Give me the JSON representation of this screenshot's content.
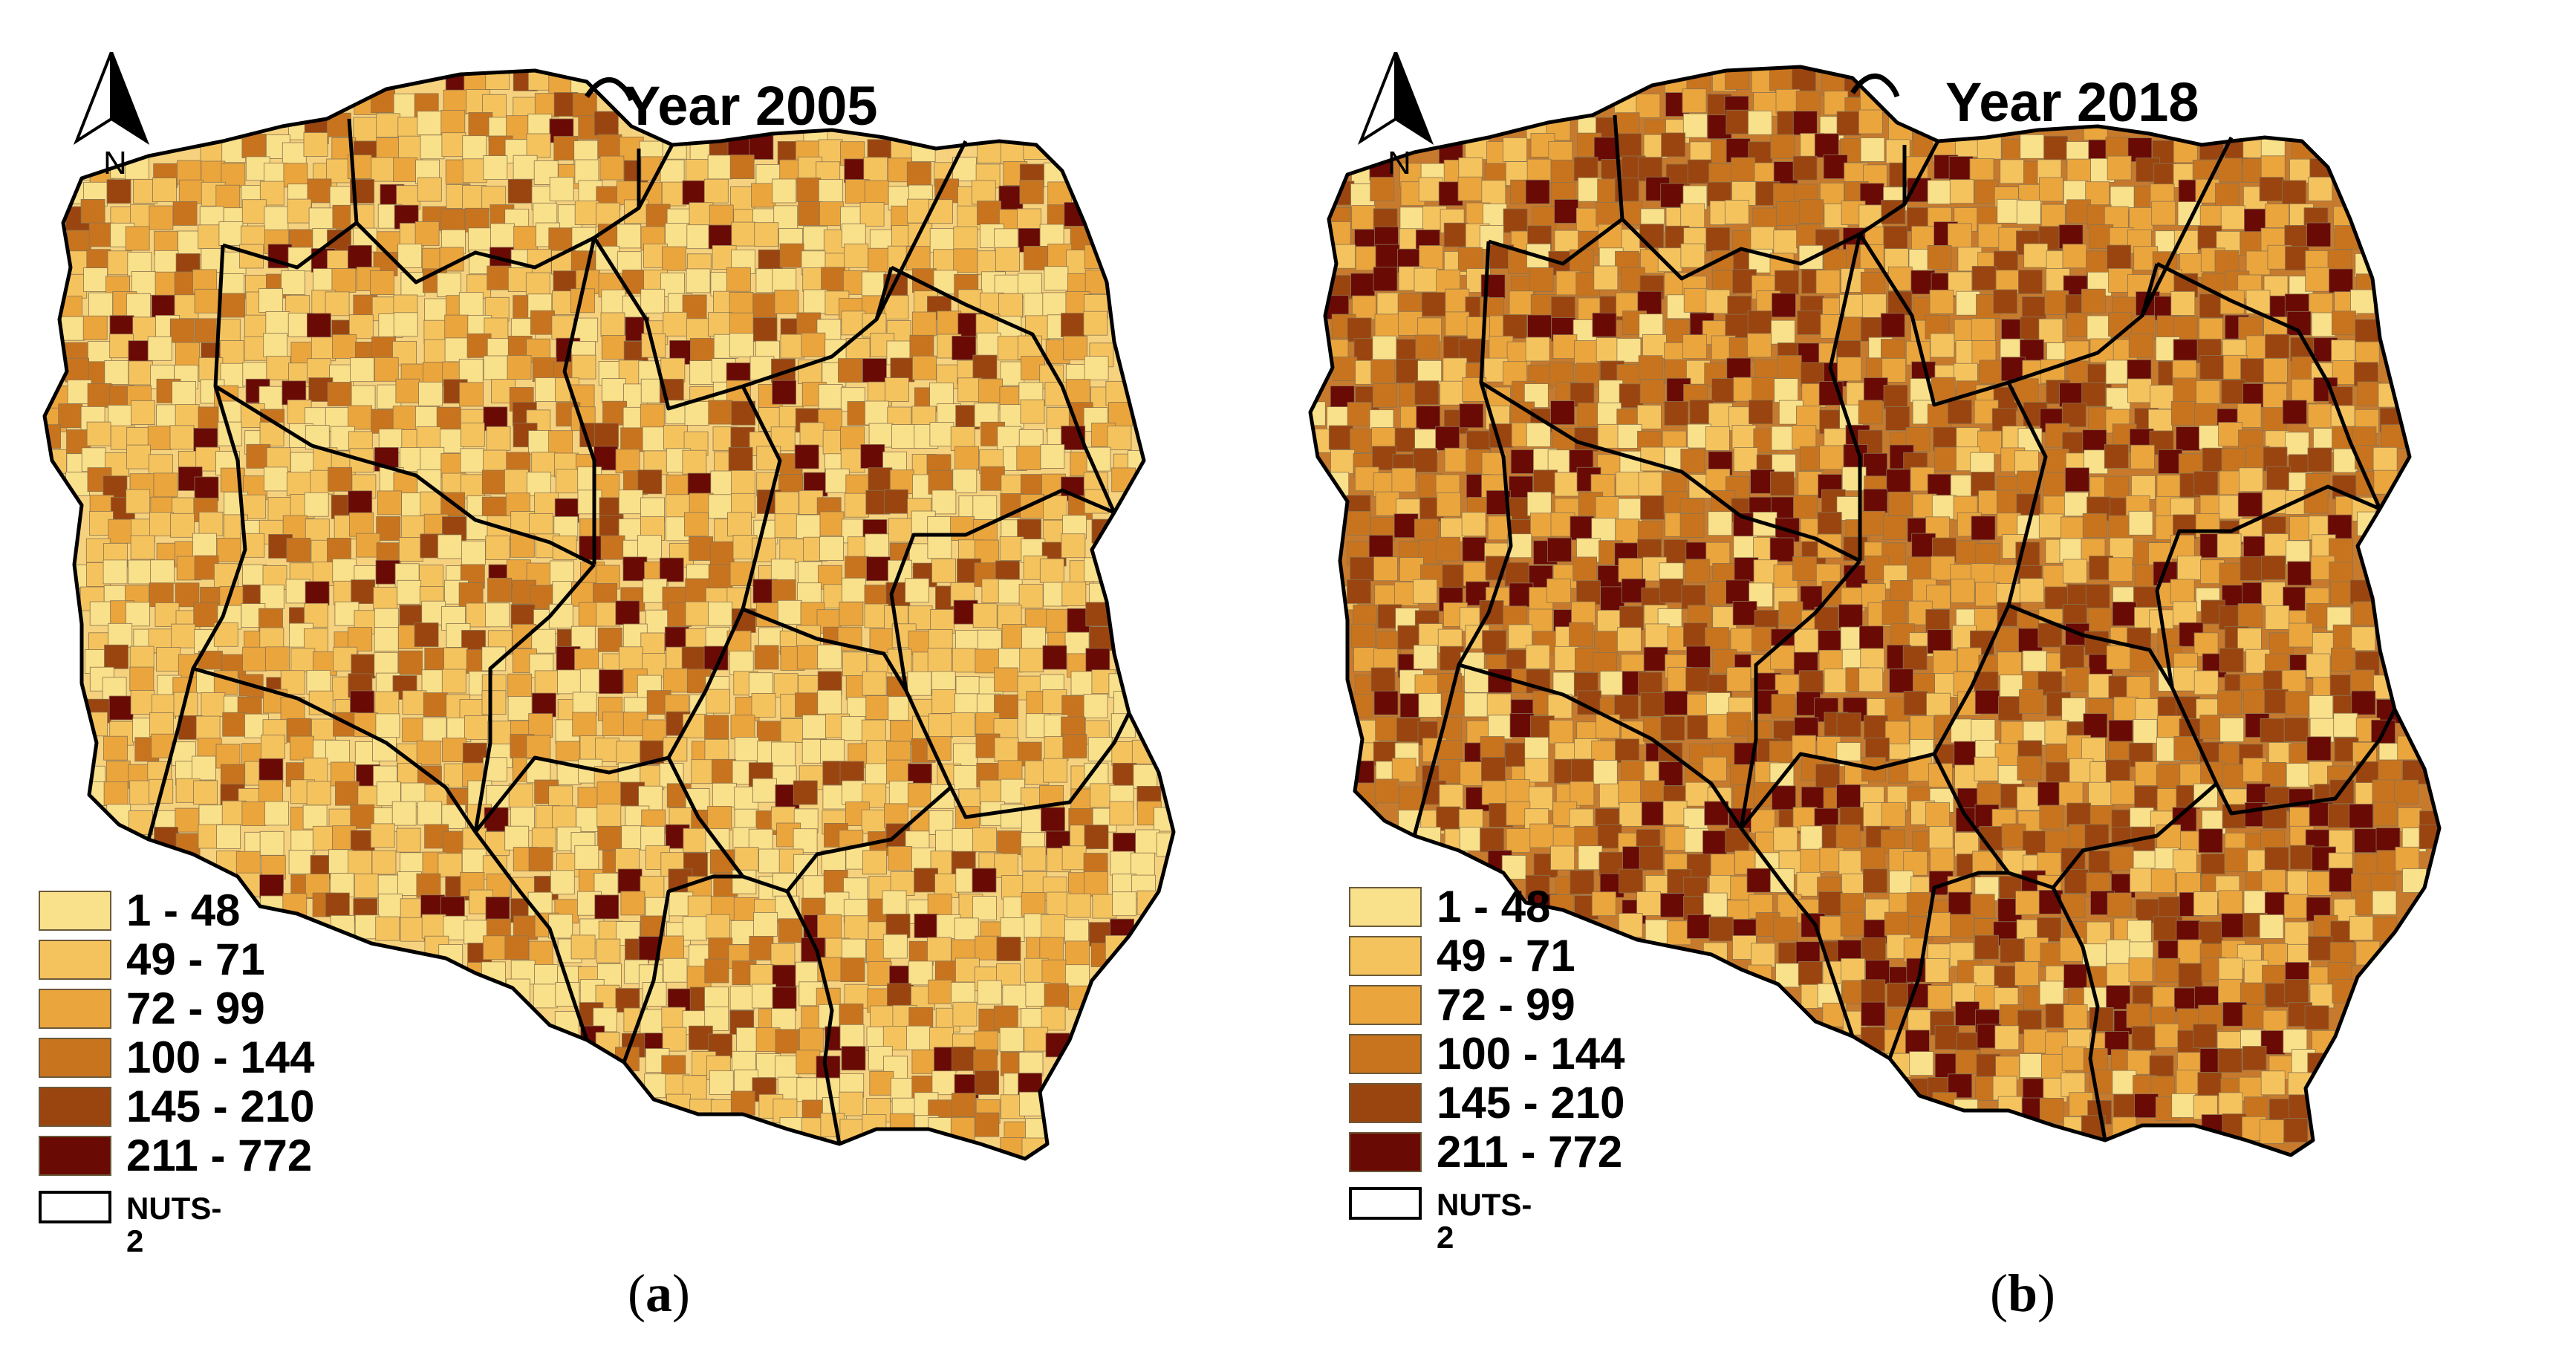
{
  "panels": [
    {
      "id": "a",
      "title": "Year 2005",
      "caption_open": "(",
      "caption_letter": "a",
      "caption_close": ")",
      "base_color": "#f6d27e",
      "palette_weights": [
        0.3,
        0.3,
        0.17,
        0.11,
        0.07,
        0.05
      ]
    },
    {
      "id": "b",
      "title": "Year 2018",
      "caption_open": "(",
      "caption_letter": "b",
      "caption_close": ")",
      "base_color": "#c87a2c",
      "palette_weights": [
        0.1,
        0.15,
        0.2,
        0.2,
        0.2,
        0.15
      ]
    }
  ],
  "north_arrow": {
    "label": "N"
  },
  "legend": {
    "classes": [
      {
        "label": "1 - 48",
        "color": "#f9e08a"
      },
      {
        "label": "49 - 71",
        "color": "#f5c35e"
      },
      {
        "label": "72 - 99",
        "color": "#eba53d"
      },
      {
        "label": "100 - 144",
        "color": "#c8741f"
      },
      {
        "label": "145 - 210",
        "color": "#9a4510"
      },
      {
        "label": "211 - 772",
        "color": "#6a0a05"
      }
    ],
    "boundary_label": "NUTS-2",
    "boundary_color": "#000000"
  }
}
